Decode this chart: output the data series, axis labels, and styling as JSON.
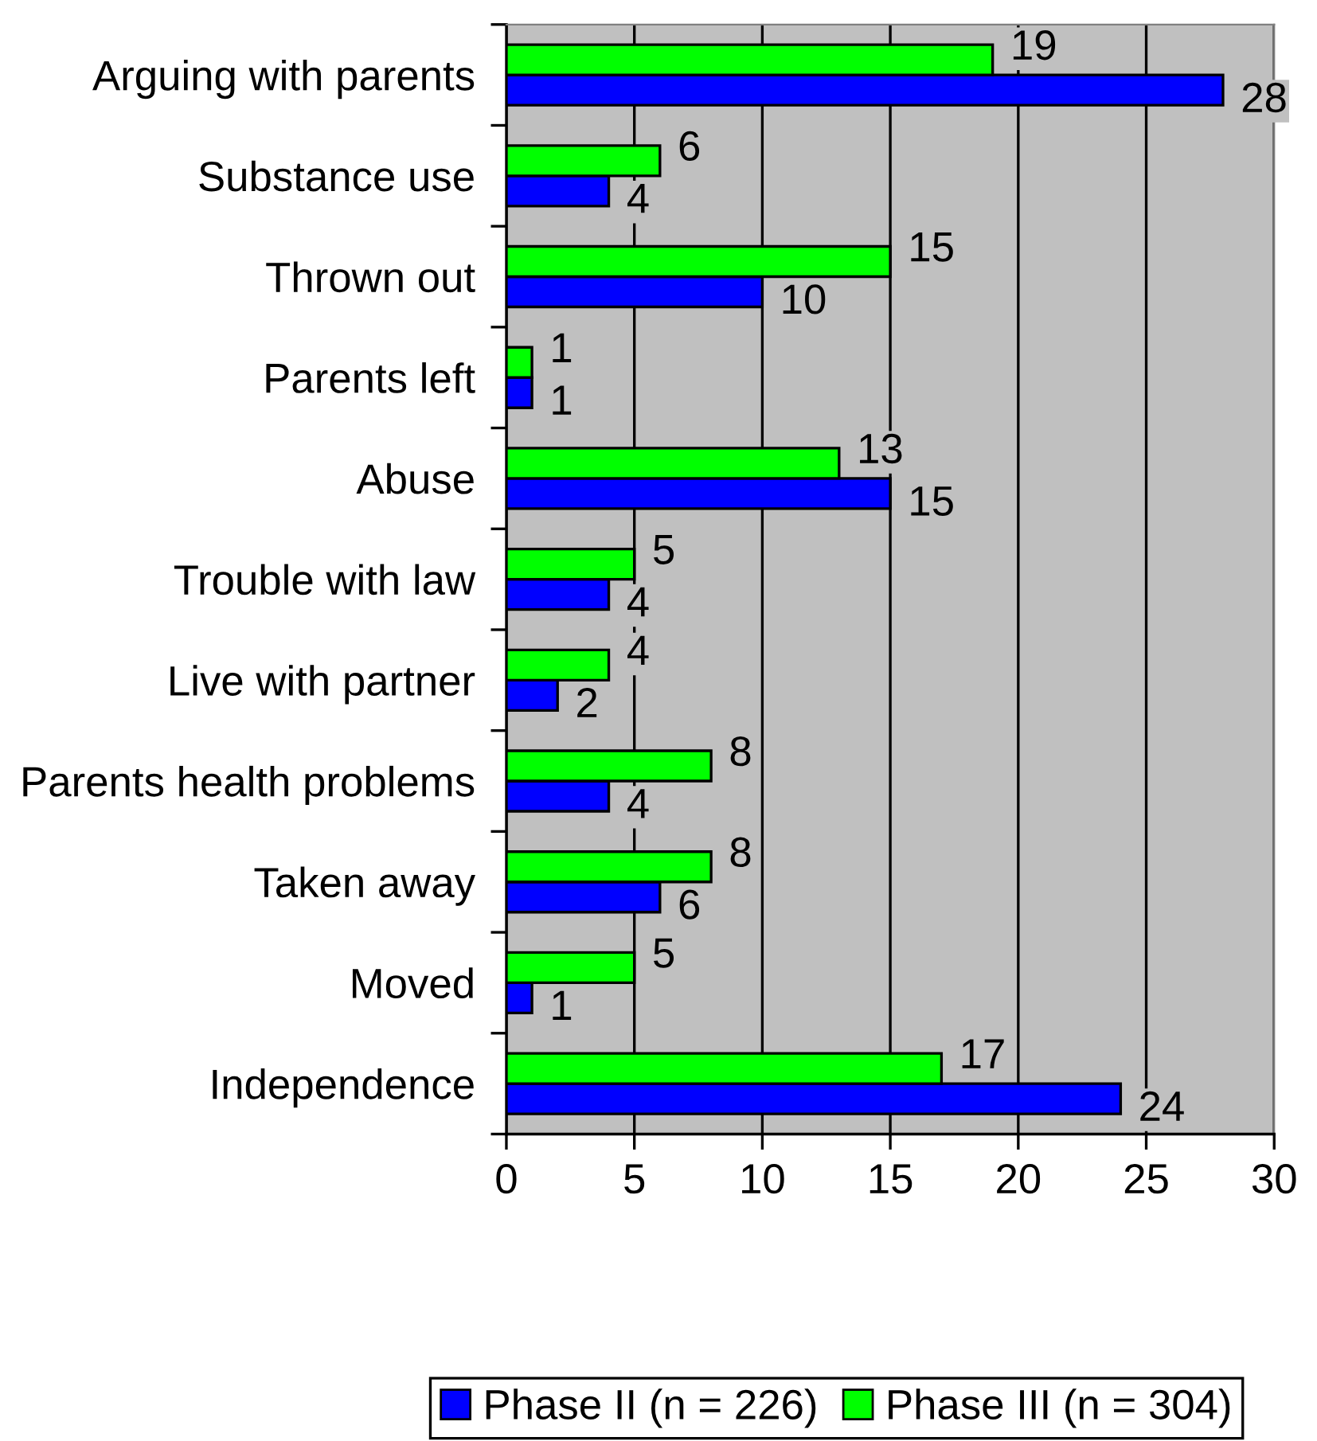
{
  "chart_data": {
    "type": "bar",
    "orientation": "horizontal",
    "categories": [
      "Arguing with parents",
      "Substance use",
      "Thrown out",
      "Parents left",
      "Abuse",
      "Trouble with law",
      "Live with partner",
      "Parents health problems",
      "Taken away",
      "Moved",
      "Independence"
    ],
    "series": [
      {
        "name": "Phase II (n = 226)",
        "color": "#0000ff",
        "values": [
          28,
          4,
          10,
          1,
          15,
          4,
          2,
          4,
          6,
          1,
          24
        ]
      },
      {
        "name": "Phase III (n = 304)",
        "color": "#00ff00",
        "values": [
          19,
          6,
          15,
          1,
          13,
          5,
          4,
          8,
          8,
          5,
          17
        ]
      }
    ],
    "xlim": [
      0,
      30
    ],
    "xticks": [
      0,
      5,
      10,
      15,
      20,
      25,
      30
    ],
    "grid": "x",
    "legend": "bottom",
    "data_labels": true
  }
}
